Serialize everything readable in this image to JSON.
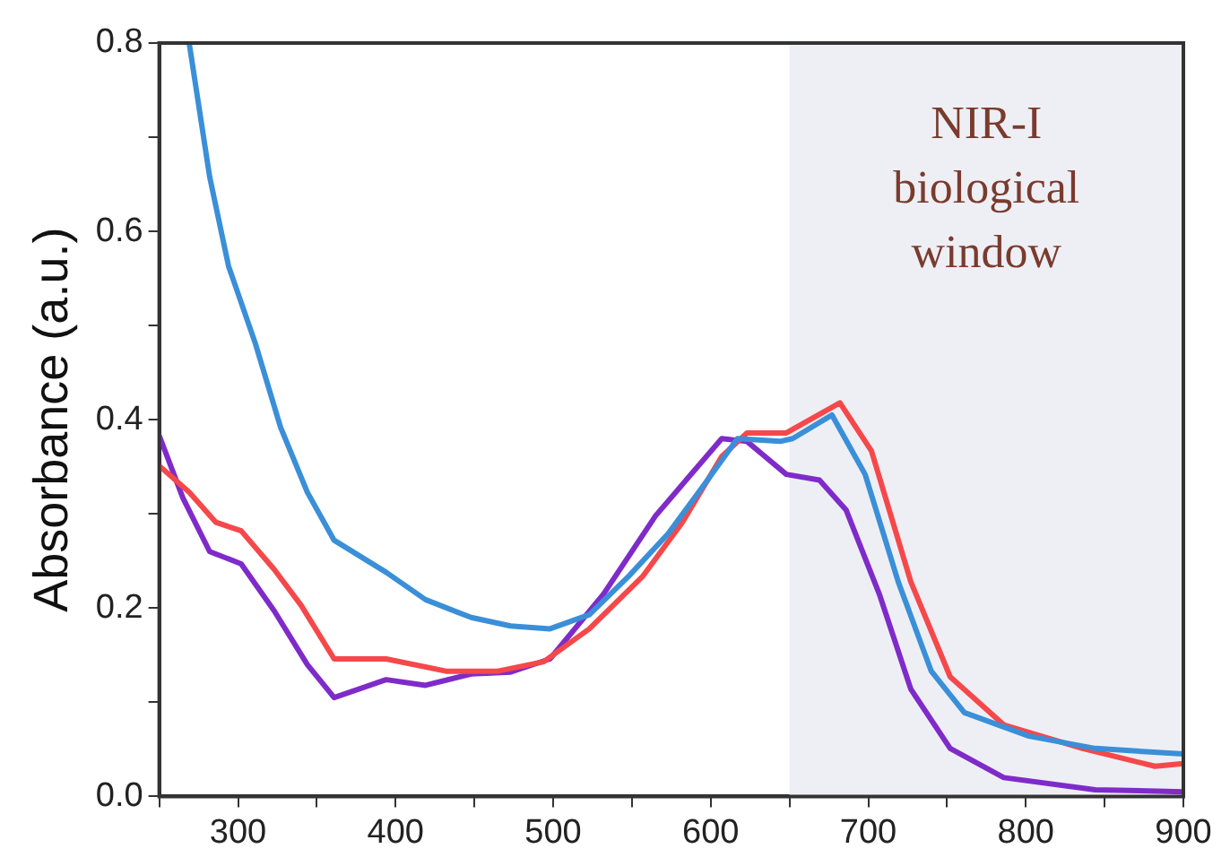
{
  "chart_data": {
    "type": "line",
    "ylabel": "Absorbance (a.u.)",
    "xlim": [
      250,
      900
    ],
    "ylim": [
      0,
      0.8
    ],
    "xticks": [
      {
        "value": 250,
        "label": null
      },
      300,
      {
        "value": 350,
        "label": null
      },
      400,
      {
        "value": 450,
        "label": null
      },
      500,
      {
        "value": 550,
        "label": null
      },
      600,
      {
        "value": 650,
        "label": null
      },
      700,
      {
        "value": 750,
        "label": null
      },
      800,
      {
        "value": 850,
        "label": null
      },
      900
    ],
    "yticks": [
      {
        "value": 0,
        "label": "0.0"
      },
      {
        "value": 0.1,
        "label": null
      },
      {
        "value": 0.2,
        "label": "0.2"
      },
      {
        "value": 0.3,
        "label": null
      },
      {
        "value": 0.4,
        "label": "0.4"
      },
      {
        "value": 0.5,
        "label": null
      },
      {
        "value": 0.6,
        "label": "0.6"
      },
      {
        "value": 0.7,
        "label": null
      },
      {
        "value": 0.8,
        "label": "0.8"
      }
    ],
    "grid": false,
    "legend": false,
    "marker": "none",
    "line_style": "solid",
    "bands": [
      {
        "axis": "x",
        "from": 650,
        "to": 900,
        "label": "NIR-I biological window",
        "color": "#eeeff4"
      }
    ],
    "series": [
      {
        "color": "#3a8fd8",
        "x": [
          269,
          282,
          294,
          311,
          327,
          344,
          361,
          394,
          419,
          448,
          473,
          498,
          523,
          548,
          573,
          598,
          617,
          644,
          652,
          677,
          698,
          719,
          740,
          761,
          802,
          844,
          900
        ],
        "values": [
          0.8,
          0.658,
          0.563,
          0.481,
          0.392,
          0.323,
          0.272,
          0.238,
          0.209,
          0.19,
          0.181,
          0.178,
          0.193,
          0.234,
          0.279,
          0.336,
          0.38,
          0.377,
          0.38,
          0.405,
          0.342,
          0.228,
          0.133,
          0.089,
          0.064,
          0.051,
          0.045
        ]
      },
      {
        "color": "#f5484a",
        "x": [
          250,
          269,
          286,
          302,
          323,
          340,
          361,
          394,
          432,
          465,
          494,
          523,
          557,
          582,
          607,
          623,
          648,
          682,
          702,
          727,
          752,
          786,
          836,
          882,
          900
        ],
        "values": [
          0.351,
          0.323,
          0.291,
          0.282,
          0.241,
          0.203,
          0.146,
          0.146,
          0.133,
          0.133,
          0.143,
          0.178,
          0.234,
          0.291,
          0.361,
          0.386,
          0.386,
          0.418,
          0.367,
          0.228,
          0.127,
          0.076,
          0.051,
          0.032,
          0.035
        ]
      },
      {
        "color": "#7f2bc9",
        "x": [
          250,
          265,
          282,
          302,
          323,
          344,
          361,
          394,
          419,
          448,
          473,
          498,
          532,
          565,
          607,
          623,
          648,
          669,
          686,
          707,
          727,
          752,
          786,
          844,
          900
        ],
        "values": [
          0.383,
          0.317,
          0.26,
          0.247,
          0.197,
          0.14,
          0.105,
          0.124,
          0.118,
          0.13,
          0.132,
          0.146,
          0.215,
          0.298,
          0.38,
          0.377,
          0.342,
          0.336,
          0.304,
          0.215,
          0.114,
          0.051,
          0.02,
          0.007,
          0.005
        ]
      }
    ]
  }
}
